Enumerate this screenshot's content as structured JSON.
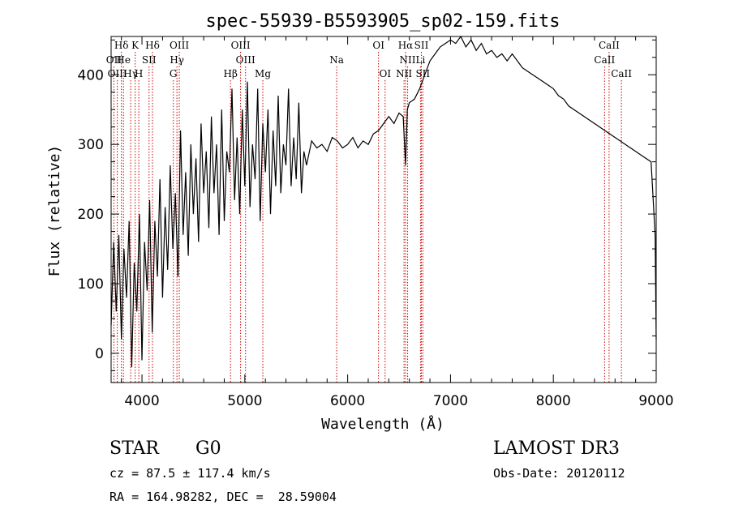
{
  "chart_data": {
    "type": "line",
    "title": "spec-55939-B5593905_sp02-159.fits",
    "xlabel": "Wavelength (Å)",
    "ylabel": "Flux (relative)",
    "xlim": [
      3700,
      9000
    ],
    "ylim": [
      -42,
      455
    ],
    "xticks": [
      4000,
      5000,
      6000,
      7000,
      8000,
      9000
    ],
    "yticks": [
      0,
      100,
      200,
      300,
      400
    ],
    "grid": false,
    "series": [
      {
        "name": "flux",
        "x": [
          3700,
          3725,
          3750,
          3775,
          3800,
          3825,
          3850,
          3875,
          3900,
          3925,
          3950,
          3975,
          4000,
          4025,
          4050,
          4075,
          4100,
          4125,
          4150,
          4175,
          4200,
          4225,
          4250,
          4275,
          4300,
          4325,
          4350,
          4375,
          4400,
          4425,
          4450,
          4475,
          4500,
          4525,
          4550,
          4575,
          4600,
          4625,
          4650,
          4675,
          4700,
          4725,
          4750,
          4775,
          4800,
          4825,
          4850,
          4875,
          4900,
          4925,
          4950,
          4975,
          5000,
          5025,
          5050,
          5075,
          5100,
          5125,
          5150,
          5175,
          5200,
          5225,
          5250,
          5275,
          5300,
          5325,
          5350,
          5375,
          5400,
          5425,
          5450,
          5475,
          5500,
          5525,
          5550,
          5575,
          5600,
          5650,
          5700,
          5750,
          5800,
          5850,
          5900,
          5950,
          6000,
          6050,
          6100,
          6150,
          6200,
          6250,
          6300,
          6350,
          6400,
          6450,
          6500,
          6540,
          6563,
          6580,
          6600,
          6650,
          6700,
          6750,
          6800,
          6850,
          6900,
          6950,
          7000,
          7050,
          7100,
          7150,
          7200,
          7250,
          7300,
          7350,
          7400,
          7450,
          7500,
          7550,
          7600,
          7650,
          7700,
          7750,
          7800,
          7850,
          7900,
          7950,
          8000,
          8050,
          8100,
          8150,
          8200,
          8250,
          8300,
          8350,
          8400,
          8450,
          8500,
          8550,
          8600,
          8650,
          8700,
          8750,
          8800,
          8850,
          8900,
          8950,
          8990,
          9000
        ],
        "values": [
          40,
          160,
          60,
          170,
          20,
          150,
          80,
          190,
          -20,
          130,
          60,
          200,
          -10,
          160,
          90,
          220,
          30,
          190,
          110,
          250,
          80,
          210,
          120,
          270,
          150,
          230,
          110,
          320,
          170,
          260,
          140,
          300,
          200,
          280,
          160,
          330,
          230,
          290,
          180,
          340,
          230,
          300,
          170,
          350,
          190,
          290,
          260,
          380,
          220,
          310,
          200,
          350,
          240,
          390,
          210,
          300,
          250,
          380,
          190,
          330,
          260,
          350,
          200,
          320,
          240,
          370,
          230,
          300,
          270,
          380,
          240,
          310,
          250,
          360,
          230,
          290,
          270,
          305,
          295,
          300,
          290,
          310,
          305,
          295,
          300,
          310,
          295,
          305,
          300,
          315,
          320,
          330,
          340,
          330,
          345,
          340,
          270,
          350,
          360,
          365,
          380,
          400,
          420,
          430,
          440,
          445,
          450,
          445,
          455,
          440,
          450,
          435,
          445,
          430,
          435,
          425,
          430,
          420,
          430,
          420,
          410,
          405,
          400,
          395,
          390,
          385,
          380,
          370,
          365,
          355,
          350,
          345,
          340,
          335,
          330,
          325,
          320,
          315,
          310,
          305,
          300,
          295,
          290,
          285,
          280,
          275,
          170,
          20
        ]
      }
    ],
    "line_markers": [
      {
        "label": "Hδ",
        "x": 3800,
        "row": 1
      },
      {
        "label": "K",
        "x": 3934,
        "row": 1
      },
      {
        "label": "Hδ",
        "x": 4102,
        "row": 1
      },
      {
        "label": "OIII",
        "x": 4363,
        "row": 1
      },
      {
        "label": "OIII",
        "x": 4959,
        "row": 1
      },
      {
        "label": "OI",
        "x": 6300,
        "row": 1
      },
      {
        "label": "Hα",
        "x": 6563,
        "row": 1
      },
      {
        "label": "SII",
        "x": 6717,
        "row": 1
      },
      {
        "label": "CaII",
        "x": 8542,
        "row": 1
      },
      {
        "label": "OII",
        "x": 3727,
        "row": 2
      },
      {
        "label": "He",
        "x": 3820,
        "row": 2
      },
      {
        "label": "SII",
        "x": 4069,
        "row": 2
      },
      {
        "label": "Hγ",
        "x": 4340,
        "row": 2
      },
      {
        "label": "OIII",
        "x": 5007,
        "row": 2
      },
      {
        "label": "Na",
        "x": 5893,
        "row": 2
      },
      {
        "label": "NII",
        "x": 6583,
        "row": 2
      },
      {
        "label": "Li",
        "x": 6708,
        "row": 2
      },
      {
        "label": "CaII",
        "x": 8498,
        "row": 2
      },
      {
        "label": "OIII",
        "x": 3760,
        "row": 3
      },
      {
        "label": "Hγ",
        "x": 3890,
        "row": 3
      },
      {
        "label": "H",
        "x": 3969,
        "row": 3
      },
      {
        "label": "G",
        "x": 4305,
        "row": 3
      },
      {
        "label": "Hβ",
        "x": 4861,
        "row": 3
      },
      {
        "label": "Mg",
        "x": 5175,
        "row": 3
      },
      {
        "label": "OI",
        "x": 6364,
        "row": 3
      },
      {
        "label": "NII",
        "x": 6548,
        "row": 3
      },
      {
        "label": "SII",
        "x": 6731,
        "row": 3
      },
      {
        "label": "CaII",
        "x": 8662,
        "row": 3
      }
    ]
  },
  "info": {
    "object_class": "STAR",
    "subclass": "G0",
    "survey": "LAMOST DR3",
    "cz": "cz = 87.5 ± 117.4 km/s",
    "obs_date": "Obs-Date: 20120112",
    "coords": "RA = 164.98282, DEC =  28.59004"
  },
  "colors": {
    "line": "#000000",
    "marker": "#cc0000",
    "axis": "#000000"
  }
}
